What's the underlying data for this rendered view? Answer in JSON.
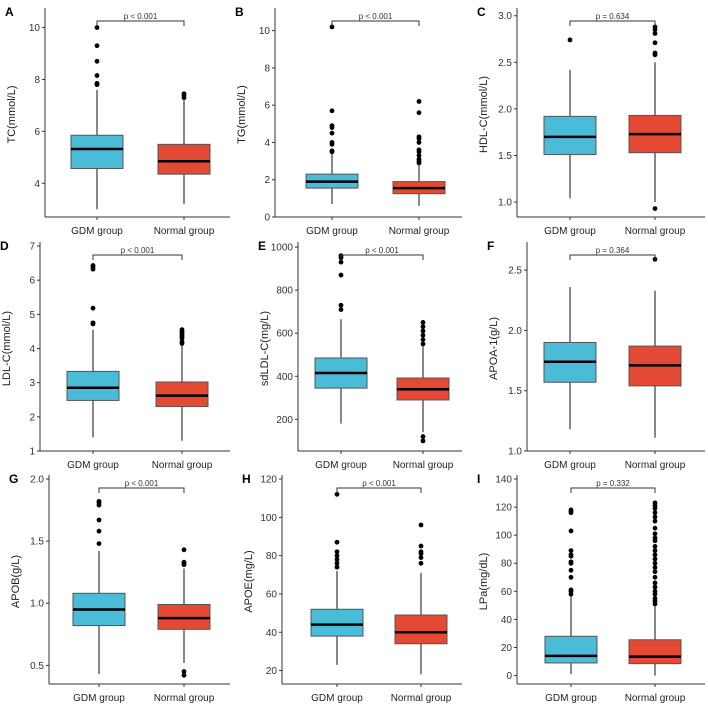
{
  "chart_data": [
    {
      "type": "box",
      "panel": "A",
      "ylabel": "TC(mmol/L)",
      "ylim": [
        2.7,
        10.6
      ],
      "ticks": [
        "4",
        "6",
        "8",
        "10"
      ],
      "categories": [
        "GDM group",
        "Normal group"
      ],
      "p_label": "p < 0.001",
      "boxes": [
        {
          "q1": 4.57,
          "median": 5.32,
          "q3": 5.85,
          "whisker_low": 3.0,
          "whisker_high": 7.6,
          "outliers": [
            7.8,
            7.85,
            8.15,
            8.7,
            9.3,
            10.0
          ]
        },
        {
          "q1": 4.35,
          "median": 4.85,
          "q3": 5.5,
          "whisker_low": 3.2,
          "whisker_high": 7.2,
          "outliers": [
            7.3,
            7.4,
            7.45
          ]
        }
      ]
    },
    {
      "type": "box",
      "panel": "B",
      "ylabel": "TG(mmol/L)",
      "ylim": [
        0,
        11
      ],
      "ticks": [
        "0",
        "2",
        "4",
        "6",
        "8",
        "10"
      ],
      "categories": [
        "GDM group",
        "Normal group"
      ],
      "p_label": "p < 0.001",
      "boxes": [
        {
          "q1": 1.55,
          "median": 1.9,
          "q3": 2.3,
          "whisker_low": 0.7,
          "whisker_high": 3.4,
          "outliers": [
            3.5,
            3.55,
            3.9,
            4.0,
            4.5,
            4.8,
            4.9,
            5.7,
            10.2
          ]
        },
        {
          "q1": 1.25,
          "median": 1.55,
          "q3": 1.9,
          "whisker_low": 0.6,
          "whisker_high": 2.8,
          "outliers": [
            2.9,
            3.0,
            3.1,
            3.3,
            3.5,
            3.6,
            4.0,
            4.2,
            4.3,
            5.6,
            6.2
          ]
        }
      ]
    },
    {
      "type": "box",
      "panel": "C",
      "ylabel": "HDL-C(mmol/L)",
      "ylim": [
        0.84,
        3.04
      ],
      "ticks": [
        "1.0",
        "1.5",
        "2.0",
        "2.5",
        "3.0"
      ],
      "categories": [
        "GDM group",
        "Normal group"
      ],
      "p_label": "p = 0.634",
      "boxes": [
        {
          "q1": 1.51,
          "median": 1.7,
          "q3": 1.92,
          "whisker_low": 1.04,
          "whisker_high": 2.42,
          "outliers": [
            2.74
          ]
        },
        {
          "q1": 1.53,
          "median": 1.73,
          "q3": 1.93,
          "whisker_low": 1.0,
          "whisker_high": 2.5,
          "outliers": [
            0.93,
            2.58,
            2.6,
            2.71,
            2.81,
            2.85,
            2.88
          ]
        }
      ]
    },
    {
      "type": "box",
      "panel": "D",
      "ylabel": "LDL-C(mmol/L)",
      "ylim": [
        1,
        7
      ],
      "ticks": [
        "1",
        "2",
        "3",
        "4",
        "5",
        "6",
        "7"
      ],
      "categories": [
        "GDM group",
        "Normal group"
      ],
      "p_label": "p < 0.001",
      "boxes": [
        {
          "q1": 2.48,
          "median": 2.85,
          "q3": 3.33,
          "whisker_low": 1.4,
          "whisker_high": 4.55,
          "outliers": [
            4.72,
            4.75,
            5.18,
            6.32,
            6.38,
            6.43
          ]
        },
        {
          "q1": 2.3,
          "median": 2.62,
          "q3": 3.02,
          "whisker_low": 1.3,
          "whisker_high": 4.1,
          "outliers": [
            4.15,
            4.2,
            4.3,
            4.35,
            4.4,
            4.45,
            4.5,
            4.55
          ]
        }
      ]
    },
    {
      "type": "box",
      "panel": "E",
      "ylabel": "sdLDL-C(mg/L)",
      "ylim": [
        53,
        1005
      ],
      "ticks": [
        "200",
        "400",
        "600",
        "800",
        "1000"
      ],
      "categories": [
        "GDM group",
        "Normal group"
      ],
      "p_label": "p < 0.001",
      "boxes": [
        {
          "q1": 345,
          "median": 415,
          "q3": 485,
          "whisker_low": 180,
          "whisker_high": 665,
          "outliers": [
            710,
            730,
            870,
            930,
            950,
            960
          ]
        },
        {
          "q1": 290,
          "median": 340,
          "q3": 392,
          "whisker_low": 140,
          "whisker_high": 540,
          "outliers": [
            100,
            120,
            550,
            570,
            590,
            610,
            630,
            650
          ]
        }
      ]
    },
    {
      "type": "box",
      "panel": "F",
      "ylabel": "APOA-1(g/L)",
      "ylim": [
        1.0,
        2.7
      ],
      "ticks": [
        "1.0",
        "1.5",
        "2.0",
        "2.5"
      ],
      "categories": [
        "GDM group",
        "Normal group"
      ],
      "p_label": "p = 0.364",
      "boxes": [
        {
          "q1": 1.57,
          "median": 1.74,
          "q3": 1.9,
          "whisker_low": 1.18,
          "whisker_high": 2.36,
          "outliers": []
        },
        {
          "q1": 1.54,
          "median": 1.71,
          "q3": 1.87,
          "whisker_low": 1.11,
          "whisker_high": 2.33,
          "outliers": [
            2.59
          ]
        }
      ]
    },
    {
      "type": "box",
      "panel": "G",
      "ylabel": "APOB(g/L)",
      "ylim": [
        0.35,
        2.0
      ],
      "ticks": [
        "0.5",
        "1.0",
        "1.5",
        "2.0"
      ],
      "categories": [
        "GDM group",
        "Normal group"
      ],
      "p_label": "p < 0.001",
      "boxes": [
        {
          "q1": 0.82,
          "median": 0.95,
          "q3": 1.08,
          "whisker_low": 0.43,
          "whisker_high": 1.42,
          "outliers": [
            1.48,
            1.58,
            1.67,
            1.79,
            1.81,
            1.82
          ]
        },
        {
          "q1": 0.79,
          "median": 0.88,
          "q3": 0.99,
          "whisker_low": 0.52,
          "whisker_high": 1.28,
          "outliers": [
            0.42,
            0.45,
            1.31,
            1.32,
            1.33,
            1.43
          ]
        }
      ]
    },
    {
      "type": "box",
      "panel": "H",
      "ylabel": "APOE(mg/L)",
      "ylim": [
        13,
        120
      ],
      "ticks": [
        "20",
        "40",
        "60",
        "80",
        "100",
        "120"
      ],
      "categories": [
        "GDM group",
        "Normal group"
      ],
      "p_label": "p < 0.001",
      "boxes": [
        {
          "q1": 38,
          "median": 44,
          "q3": 52,
          "whisker_low": 23,
          "whisker_high": 72,
          "outliers": [
            74,
            76,
            78,
            80,
            82,
            87,
            112
          ]
        },
        {
          "q1": 34,
          "median": 40,
          "q3": 49,
          "whisker_low": 18,
          "whisker_high": 71,
          "outliers": [
            76,
            79,
            81,
            82,
            85,
            96
          ]
        }
      ]
    },
    {
      "type": "box",
      "panel": "I",
      "ylabel": "LPa(mg/dL)",
      "ylim": [
        -6,
        140
      ],
      "ticks": [
        "0",
        "20",
        "40",
        "60",
        "80",
        "100",
        "120",
        "140"
      ],
      "categories": [
        "GDM group",
        "Normal group"
      ],
      "p_label": "p = 0.332",
      "boxes": [
        {
          "q1": 9,
          "median": 14,
          "q3": 28,
          "whisker_low": 1,
          "whisker_high": 57,
          "outliers": [
            58,
            60,
            61,
            70,
            75,
            80,
            81,
            85,
            86,
            89,
            103,
            116,
            117,
            118
          ]
        },
        {
          "q1": 8.5,
          "median": 13.5,
          "q3": 25.5,
          "whisker_low": 0,
          "whisker_high": 50,
          "outliers": [
            51,
            53,
            55,
            58,
            60,
            63,
            66,
            70,
            74,
            77,
            80,
            83,
            86,
            89,
            92,
            96,
            98,
            101,
            105,
            110,
            113,
            116,
            119,
            121,
            123
          ]
        }
      ]
    }
  ],
  "colors": {
    "gdm": "#4bbcd8",
    "normal": "#e44a33"
  }
}
